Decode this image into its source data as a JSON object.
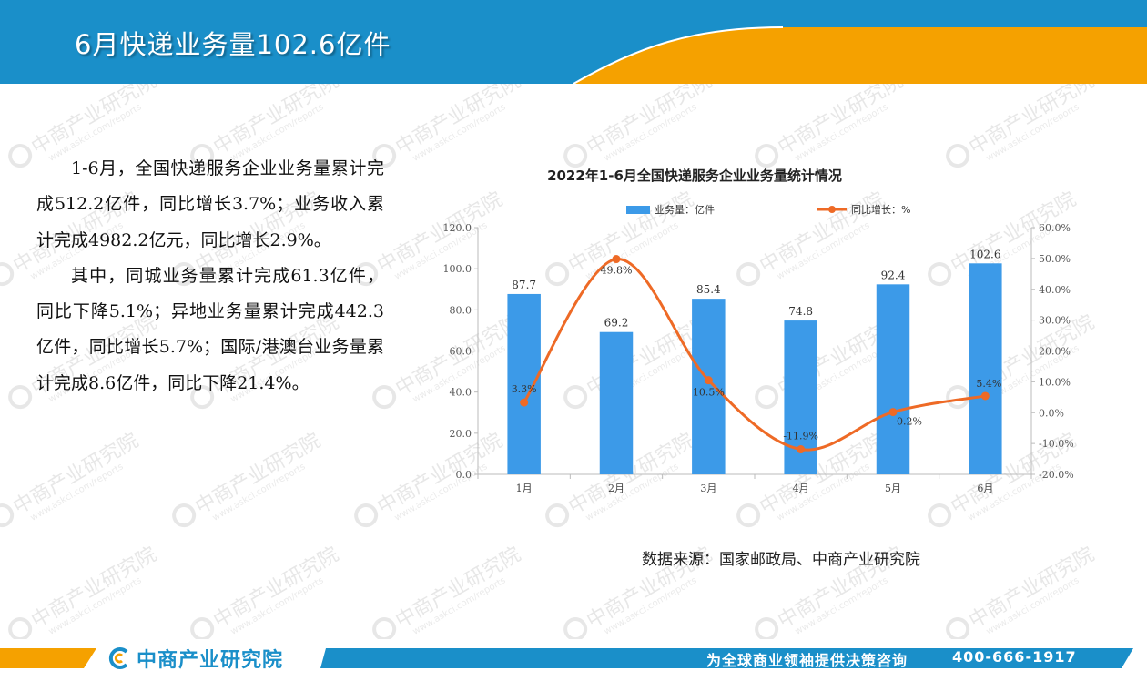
{
  "header": {
    "title": "6月快递业务量102.6亿件",
    "colors": {
      "primary": "#1a8fc9",
      "accent": "#f5a100"
    }
  },
  "body": {
    "para1": "1-6月，全国快递服务企业业务量累计完成512.2亿件，同比增长3.7%；业务收入累计完成4982.2亿元，同比增长2.9%。",
    "para2": "其中，同城业务量累计完成61.3亿件，同比下降5.1%；异地业务量累计完成442.3亿件，同比增长5.7%；国际/港澳台业务量累计完成8.6亿件，同比下降21.4%。"
  },
  "watermark": {
    "name": "中商产业研究院",
    "url": "www.askci.com/reports"
  },
  "chart_data": {
    "type": "bar",
    "title": "2022年1-6月全国快递服务企业业务量统计情况",
    "categories": [
      "1月",
      "2月",
      "3月",
      "4月",
      "5月",
      "6月"
    ],
    "series": [
      {
        "name": "业务量：亿件",
        "chart_type": "bar",
        "axis": "left",
        "color": "#3c9ae8",
        "values": [
          87.7,
          69.2,
          85.4,
          74.8,
          92.4,
          102.6
        ],
        "labels": [
          "87.7",
          "69.2",
          "85.4",
          "74.8",
          "92.4",
          "102.6"
        ]
      },
      {
        "name": "同比增长：%",
        "chart_type": "line",
        "smooth": true,
        "axis": "right",
        "color": "#ee6a26",
        "values": [
          3.3,
          49.8,
          10.5,
          -11.9,
          0.2,
          5.4
        ],
        "labels": [
          "3.3%",
          "49.8%",
          "10.5%",
          "-11.9%",
          "0.2%",
          "5.4%"
        ]
      }
    ],
    "y_left": {
      "range": [
        0,
        120
      ],
      "ticks": [
        0,
        20,
        40,
        60,
        80,
        100,
        120
      ],
      "tick_labels": [
        "0.0",
        "20.0",
        "40.0",
        "60.0",
        "80.0",
        "100.0",
        "120.0"
      ]
    },
    "y_right": {
      "range": [
        -20,
        60
      ],
      "ticks": [
        -20,
        -10,
        0,
        10,
        20,
        30,
        40,
        50,
        60
      ],
      "tick_labels": [
        "-20.0%",
        "-10.0%",
        "0.0%",
        "10.0%",
        "20.0%",
        "30.0%",
        "40.0%",
        "50.0%",
        "60.0%"
      ]
    },
    "grid": false,
    "legend": "top"
  },
  "source": "数据来源：国家邮政局、中商产业研究院",
  "footer": {
    "logo_text": "中商产业研究院",
    "slogan": "为全球商业领袖提供决策咨询",
    "phone": "400-666-1917"
  }
}
